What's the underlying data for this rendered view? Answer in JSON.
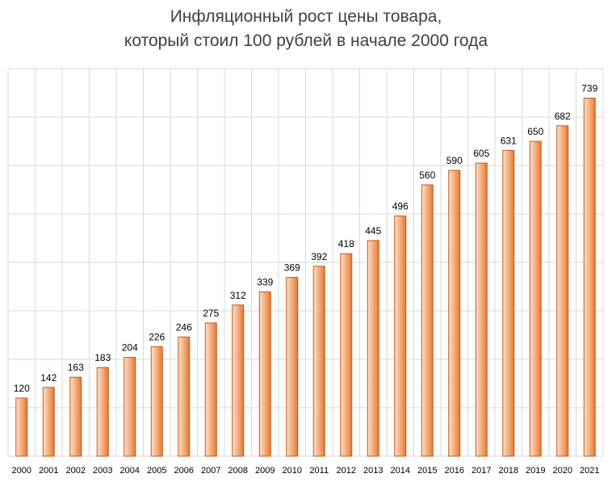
{
  "chart_data": {
    "type": "bar",
    "title_line1": "Инфляционный рост цены товара,",
    "title_line2": "который стоил 100 рублей в начале 2000 года",
    "xlabel": "",
    "ylabel": "",
    "ylim": [
      0,
      800
    ],
    "grid": true,
    "categories": [
      "2000",
      "2001",
      "2002",
      "2003",
      "2004",
      "2005",
      "2006",
      "2007",
      "2008",
      "2009",
      "2010",
      "2011",
      "2012",
      "2013",
      "2014",
      "2015",
      "2016",
      "2017",
      "2018",
      "2019",
      "2020",
      "2021"
    ],
    "values": [
      120,
      142,
      163,
      183,
      204,
      226,
      246,
      275,
      312,
      339,
      369,
      392,
      418,
      445,
      496,
      560,
      590,
      605,
      631,
      650,
      682,
      739
    ],
    "colors": {
      "bar_light": "#fde2cc",
      "bar_dark": "#e8782f",
      "bar_border": "#c4581a",
      "grid": "#d9d9d9"
    }
  }
}
